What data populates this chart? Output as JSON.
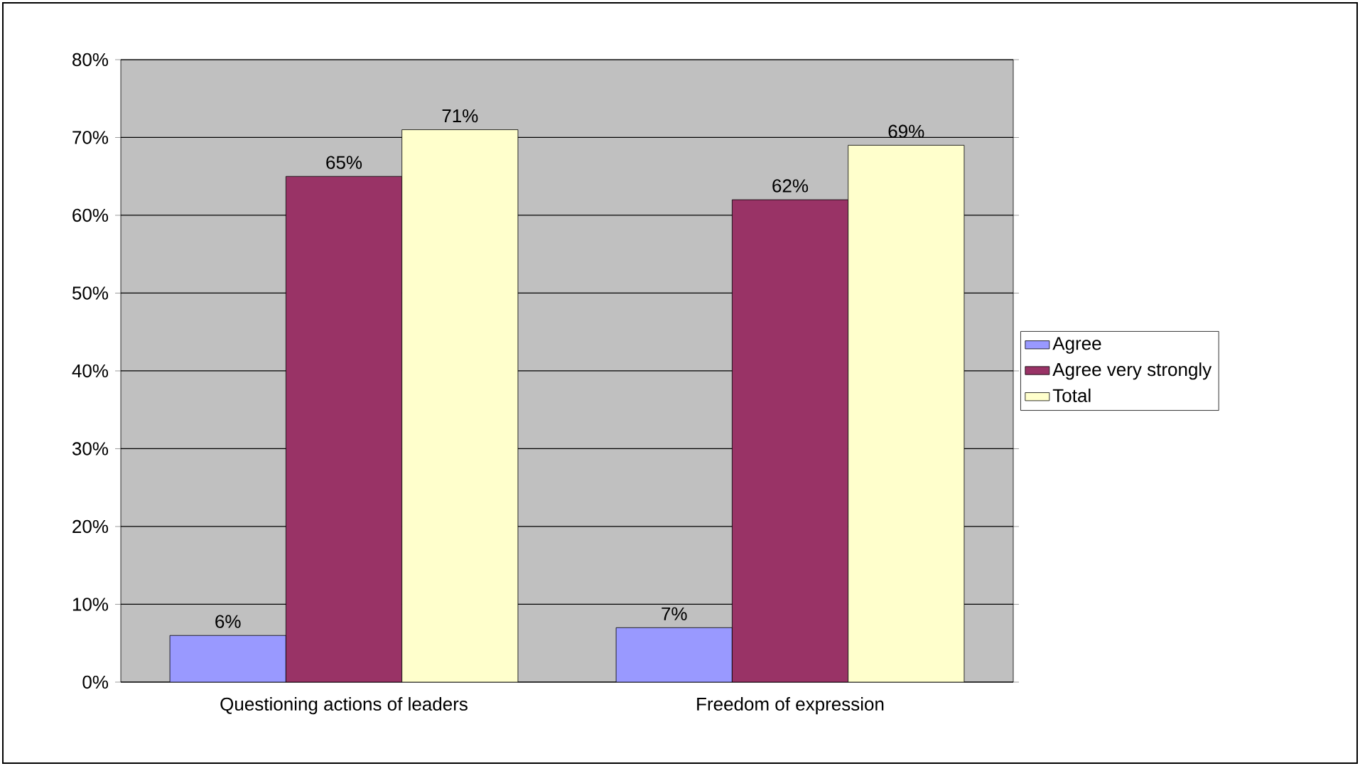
{
  "chart_data": {
    "type": "bar",
    "categories": [
      "Questioning actions of leaders",
      "Freedom of expression"
    ],
    "series": [
      {
        "name": "Agree",
        "color": "#9999ff",
        "values": [
          6,
          7
        ],
        "value_labels": [
          "6%",
          "7%"
        ]
      },
      {
        "name": "Agree very strongly",
        "color": "#993366",
        "values": [
          65,
          62
        ],
        "value_labels": [
          "65%",
          "62%"
        ]
      },
      {
        "name": "Total",
        "color": "#ffffcc",
        "values": [
          71,
          69
        ],
        "value_labels": [
          "71%",
          "69%"
        ]
      }
    ],
    "ylim": [
      0,
      80
    ],
    "yticks": [
      {
        "value": 0,
        "label": "0%"
      },
      {
        "value": 10,
        "label": "10%"
      },
      {
        "value": 20,
        "label": "20%"
      },
      {
        "value": 30,
        "label": "30%"
      },
      {
        "value": 40,
        "label": "40%"
      },
      {
        "value": 50,
        "label": "50%"
      },
      {
        "value": 60,
        "label": "60%"
      },
      {
        "value": 70,
        "label": "70%"
      },
      {
        "value": 80,
        "label": "80%"
      }
    ],
    "grid": "y",
    "legend": "right"
  }
}
